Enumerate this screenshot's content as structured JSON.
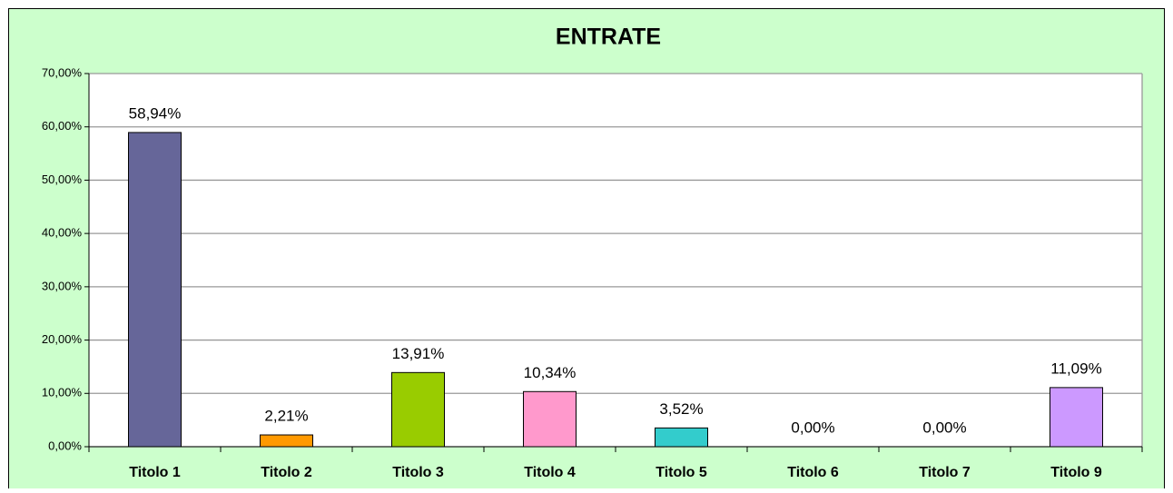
{
  "chart_data": {
    "type": "bar",
    "title": "ENTRATE",
    "categories": [
      "Titolo 1",
      "Titolo 2",
      "Titolo 3",
      "Titolo 4",
      "Titolo 5",
      "Titolo 6",
      "Titolo 7",
      "Titolo 9"
    ],
    "values": [
      58.94,
      2.21,
      13.91,
      10.34,
      3.52,
      0,
      0,
      11.09
    ],
    "value_labels": [
      "58,94%",
      "2,21%",
      "13,91%",
      "10,34%",
      "3,52%",
      "0,00%",
      "0,00%",
      "11,09%"
    ],
    "colors": [
      "#666699",
      "#ff9900",
      "#99cc00",
      "#ff99cc",
      "#33cccc",
      "#993366",
      "#ffcc00",
      "#cc99ff"
    ],
    "ylim": [
      0,
      70
    ],
    "yticks": [
      {
        "value": 0,
        "label": "0,00%"
      },
      {
        "value": 10,
        "label": "10,00%"
      },
      {
        "value": 20,
        "label": "20,00%"
      },
      {
        "value": 30,
        "label": "30,00%"
      },
      {
        "value": 40,
        "label": "40,00%"
      },
      {
        "value": 50,
        "label": "50,00%"
      },
      {
        "value": 60,
        "label": "60,00%"
      },
      {
        "value": 70,
        "label": "70,00%"
      }
    ],
    "grid": true
  }
}
